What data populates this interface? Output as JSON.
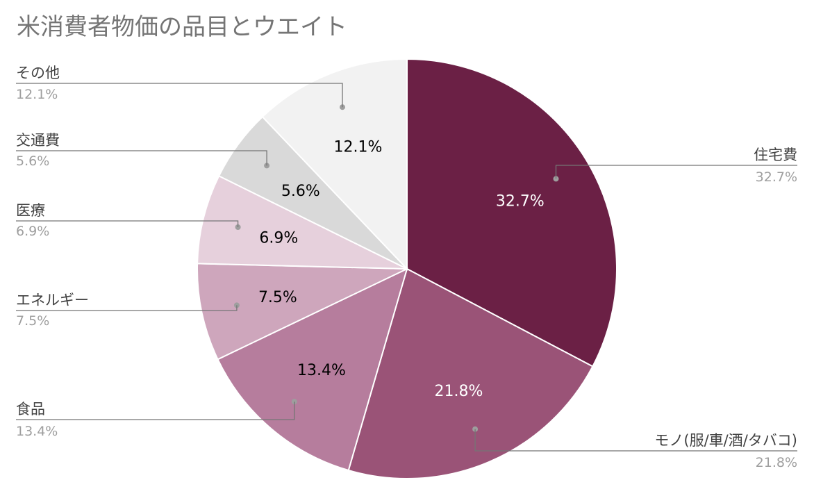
{
  "chart_data": {
    "type": "pie",
    "title": "米消費者物価の品目とウエイト",
    "slices": [
      {
        "name": "住宅費",
        "value": 32.7,
        "label": "32.7%",
        "color": "#6b2045",
        "label_color": "#ffffff"
      },
      {
        "name": "モノ(服/車/酒/タバコ)",
        "value": 21.8,
        "label": "21.8%",
        "color": "#9a5377",
        "label_color": "#ffffff"
      },
      {
        "name": "食品",
        "value": 13.4,
        "label": "13.4%",
        "color": "#b67d9d",
        "label_color": "#000000"
      },
      {
        "name": "エネルギー",
        "value": 7.5,
        "label": "7.5%",
        "color": "#cea6bc",
        "label_color": "#000000"
      },
      {
        "name": "医療",
        "value": 6.9,
        "label": "6.9%",
        "color": "#e6d0dc",
        "label_color": "#000000"
      },
      {
        "name": "交通費",
        "value": 5.6,
        "label": "5.6%",
        "color": "#d9d9d9",
        "label_color": "#000000"
      },
      {
        "name": "その他",
        "value": 12.1,
        "label": "12.1%",
        "color": "#f2f2f2",
        "label_color": "#000000"
      }
    ],
    "start_angle": "12 o'clock",
    "direction": "clockwise",
    "legend": "leader labels on both sides"
  }
}
